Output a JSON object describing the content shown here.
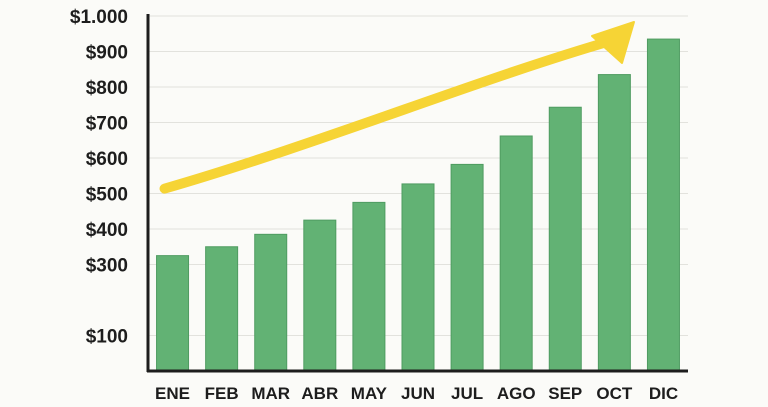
{
  "chart_data": {
    "type": "bar",
    "title": "",
    "xlabel": "",
    "ylabel": "",
    "categories": [
      "ENE",
      "FEB",
      "MAR",
      "ABR",
      "MAY",
      "JUN",
      "JUL",
      "AGO",
      "SEP",
      "OCT",
      "DIC"
    ],
    "values": [
      325,
      350,
      385,
      425,
      475,
      527,
      582,
      662,
      743,
      835,
      935
    ],
    "ylim": [
      0,
      1000
    ],
    "y_ticks": [
      100,
      300,
      400,
      500,
      600,
      700,
      800,
      900,
      1000
    ],
    "y_tick_labels": [
      "$100",
      "$300",
      "$400",
      "$500",
      "$600",
      "$700",
      "$800",
      "$900",
      "$1.000"
    ],
    "grid": true,
    "trend_arrow": true,
    "colors": {
      "bar": "#62b274",
      "bar_edge": "#4f9c61",
      "arrow": "#f6d435",
      "axis": "#1d1d1d",
      "grid": "#e2e2dd",
      "background": "#fbfbf8"
    }
  }
}
